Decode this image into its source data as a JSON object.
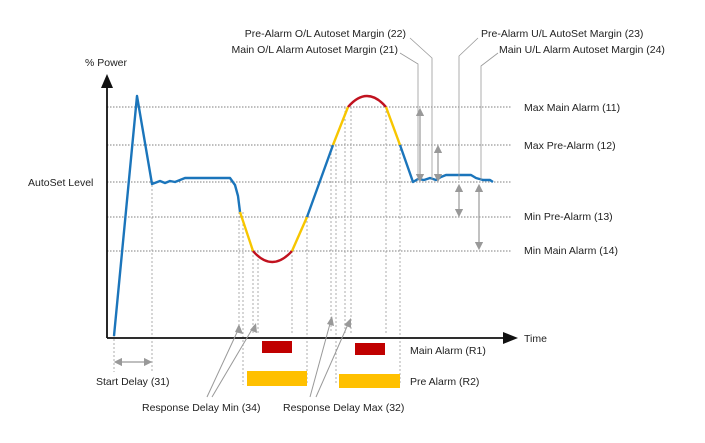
{
  "axis": {
    "y_label": "% Power",
    "x_label": "Time"
  },
  "levels": {
    "max_main": "Max Main Alarm (11)",
    "max_pre": "Max Pre-Alarm (12)",
    "autoset": "AutoSet Level",
    "min_pre": "Min Pre-Alarm (13)",
    "min_main": "Min Main Alarm (14)"
  },
  "margins": {
    "pre_ol": "Pre-Alarm O/L Autoset Margin (22)",
    "main_ol": "Main O/L Alarm Autoset Margin (21)",
    "pre_ul": "Pre-Alarm U/L AutoSet Margin (23)",
    "main_ul": "Main U/L Alarm Autoset Margin (24)"
  },
  "bottom": {
    "start_delay": "Start Delay (31)",
    "response_min": "Response Delay Min (34)",
    "response_max": "Response Delay Max (32)",
    "main_alarm": "Main Alarm (R1)",
    "pre_alarm": "Pre Alarm (R2)"
  },
  "colors": {
    "power_curve": "#1b75bb",
    "pre_alarm_zone": "#f7c600",
    "main_alarm_zone": "#c1121f",
    "pre_alarm_bar": "#ffc000",
    "main_alarm_bar": "#c00000",
    "guide_line": "#9a9a9a",
    "axis": "#111111"
  }
}
